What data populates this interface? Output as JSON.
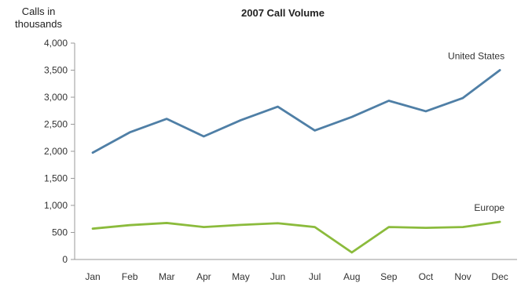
{
  "chart_data": {
    "type": "line",
    "title": "2007 Call Volume",
    "ylabel": "Calls in thousands",
    "xlabel": "",
    "categories": [
      "Jan",
      "Feb",
      "Mar",
      "Apr",
      "May",
      "Jun",
      "Jul",
      "Aug",
      "Sep",
      "Oct",
      "Nov",
      "Dec"
    ],
    "yticks": [
      "0",
      "500",
      "1,000",
      "1,500",
      "2,000",
      "2,500",
      "3,000",
      "3,500",
      "4,000"
    ],
    "ylim": [
      0,
      4000
    ],
    "grid": false,
    "legend": "inline labels at line ends",
    "series": [
      {
        "name": "United States",
        "color": "#4f7fa6",
        "values": [
          1975,
          2350,
          2600,
          2275,
          2575,
          2825,
          2385,
          2635,
          2935,
          2740,
          2985,
          3500
        ]
      },
      {
        "name": "Europe",
        "color": "#8bbb3c",
        "values": [
          570,
          635,
          675,
          600,
          640,
          670,
          600,
          130,
          600,
          585,
          600,
          695
        ]
      }
    ]
  }
}
